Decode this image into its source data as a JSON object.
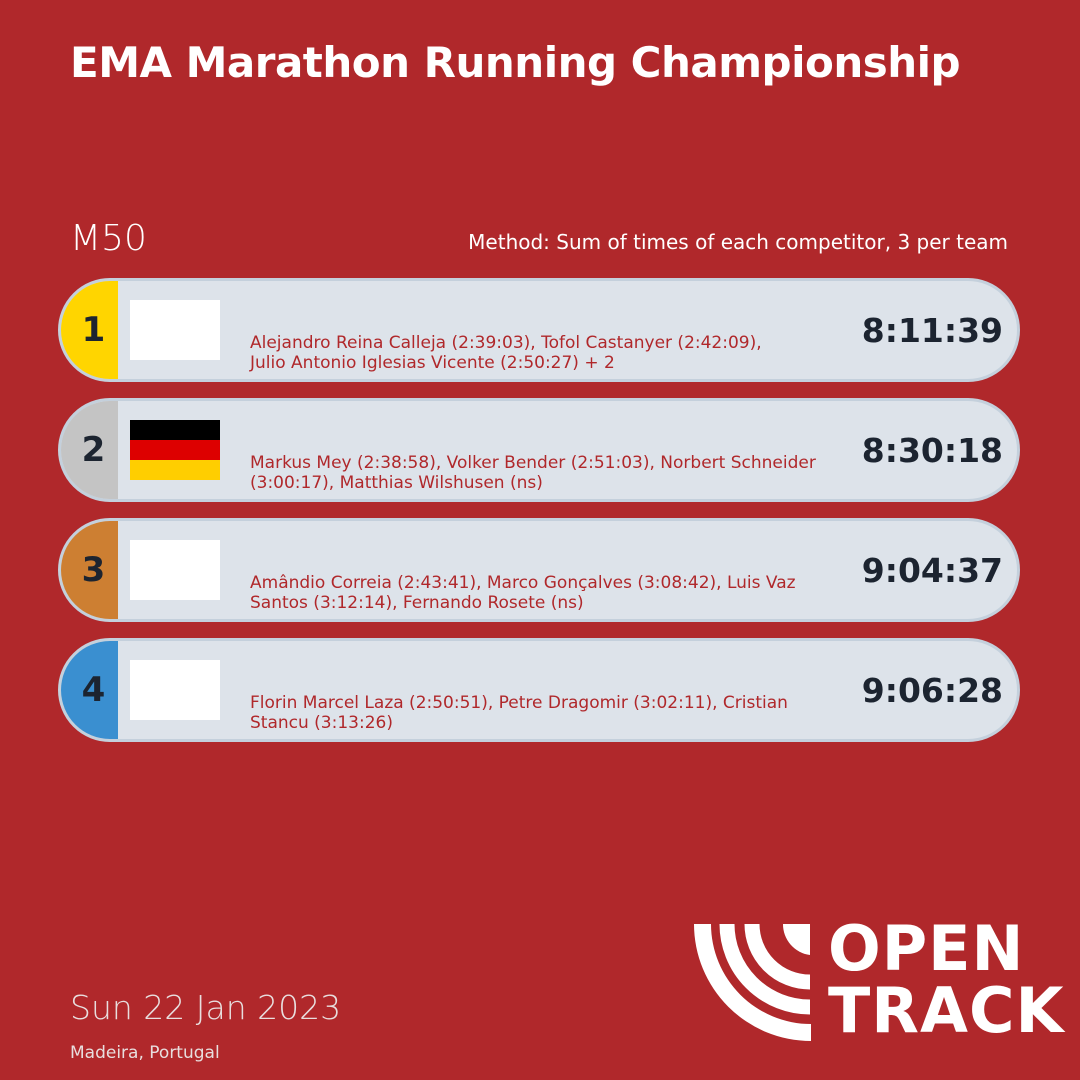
{
  "title": "EMA Marathon Running Championship",
  "category": "M50",
  "method": "Method: Sum of times of each competitor, 3 per team",
  "results": [
    {
      "rank": "1",
      "rank_color": "#ffd500",
      "flag": "blank",
      "names_line1": "Alejandro Reina Calleja (2:39:03), Tofol Castanyer (2:42:09),",
      "names_line2": "Julio Antonio Iglesias Vicente (2:50:27) + 2",
      "time": "8:11:39"
    },
    {
      "rank": "2",
      "rank_color": "#c4c4c4",
      "flag": "germany",
      "names_line1": "Markus Mey (2:38:58), Volker Bender (2:51:03), Norbert Schneider",
      "names_line2": "(3:00:17), Matthias Wilshusen (ns)",
      "time": "8:30:18"
    },
    {
      "rank": "3",
      "rank_color": "#cd7f32",
      "flag": "blank",
      "names_line1": "Amândio Correia (2:43:41), Marco Gonçalves (3:08:42), Luis Vaz",
      "names_line2": "Santos (3:12:14), Fernando Rosete (ns)",
      "time": "9:04:37"
    },
    {
      "rank": "4",
      "rank_color": "#3a8fd0",
      "flag": "blank",
      "names_line1": "Florin Marcel Laza (2:50:51), Petre Dragomir (3:02:11), Cristian",
      "names_line2": "Stancu (3:13:26)",
      "time": "9:06:28"
    }
  ],
  "date": "Sun 22 Jan 2023",
  "location": "Madeira, Portugal",
  "logo": {
    "line1": "OPEN",
    "line2": "TRACK"
  }
}
